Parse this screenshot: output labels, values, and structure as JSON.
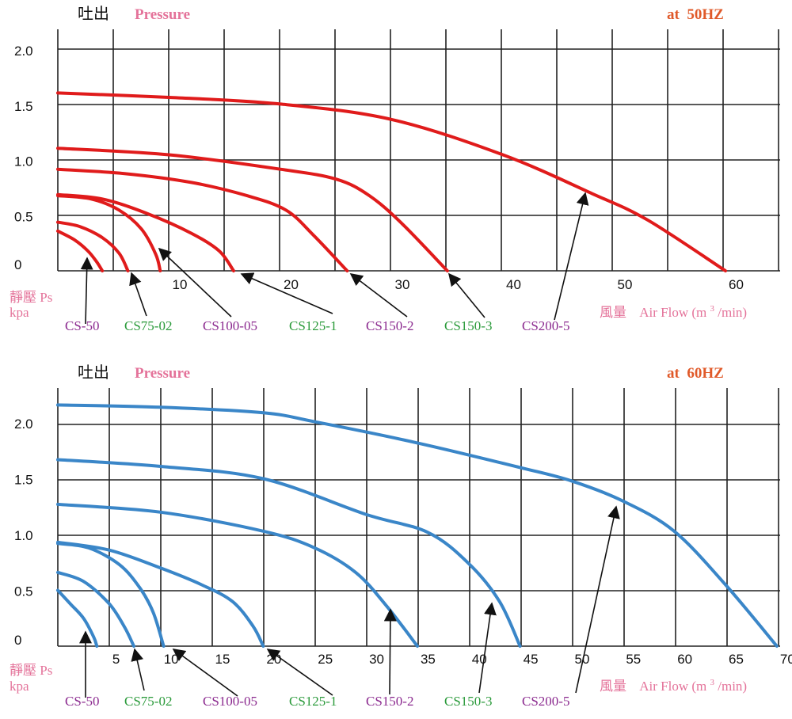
{
  "charts": [
    {
      "heading_zh": "吐出",
      "heading_en": "Pressure",
      "frequency": "at  50HZ",
      "ylabel_zh": "靜壓 Ps",
      "ylabel_unit": "kpa",
      "xlabel_zh": "風量",
      "xlabel_en": "Air Flow (m",
      "xlabel_sup": "3",
      "xlabel_tail": "/min)"
    },
    {
      "heading_zh": "吐出",
      "heading_en": "Pressure",
      "frequency": "at  60HZ",
      "ylabel_zh": "靜壓 Ps",
      "ylabel_unit": "kpa",
      "xlabel_zh": "風量",
      "xlabel_en": "Air Flow (m",
      "xlabel_sup": "3",
      "xlabel_tail": "/min)"
    }
  ],
  "colors": {
    "curve_50hz": "#e01b1b",
    "curve_60hz": "#3a86c8",
    "model_purple": "#8b2a8f",
    "model_green": "#2a9a3a",
    "label_pink": "#e4739a",
    "frequency": "#e05a2a"
  },
  "chart_data": [
    {
      "type": "line",
      "title": "at 50HZ",
      "xlabel": "風量 Air Flow (m3/min)",
      "ylabel": "靜壓 Ps kpa",
      "xlim": [
        0,
        65
      ],
      "ylim": [
        0,
        2.2
      ],
      "x_ticks": [
        "10",
        "20",
        "30",
        "40",
        "50",
        "60"
      ],
      "y_ticks": [
        "0",
        "0.5",
        "1.0",
        "1.5",
        "2.0"
      ],
      "grid": true,
      "series": [
        {
          "name": "CS-50",
          "x": [
            0,
            1.5,
            2.7,
            3.5,
            4.0
          ],
          "y": [
            0.36,
            0.28,
            0.18,
            0.08,
            0.0
          ]
        },
        {
          "name": "CS75-02",
          "x": [
            0,
            2,
            4,
            5.5,
            6.3
          ],
          "y": [
            0.44,
            0.4,
            0.3,
            0.16,
            0.0
          ]
        },
        {
          "name": "CS100-05",
          "x": [
            0,
            3,
            5.5,
            7.5,
            8.8,
            9.2
          ],
          "y": [
            0.68,
            0.65,
            0.55,
            0.38,
            0.15,
            0.0
          ]
        },
        {
          "name": "CS125-1",
          "x": [
            0,
            4,
            8,
            12,
            14.5,
            15.8
          ],
          "y": [
            0.69,
            0.65,
            0.52,
            0.34,
            0.18,
            0.0
          ]
        },
        {
          "name": "CS150-2",
          "x": [
            0,
            6,
            12,
            17,
            20.5,
            23,
            26
          ],
          "y": [
            0.92,
            0.88,
            0.8,
            0.68,
            0.55,
            0.32,
            0.0
          ]
        },
        {
          "name": "CS150-3",
          "x": [
            0,
            10,
            20,
            25,
            28,
            31,
            35
          ],
          "y": [
            1.11,
            1.05,
            0.92,
            0.83,
            0.68,
            0.42,
            0.0
          ]
        },
        {
          "name": "CS200-5",
          "x": [
            0,
            10,
            20,
            30,
            40,
            48,
            53,
            60
          ],
          "y": [
            1.61,
            1.57,
            1.51,
            1.37,
            1.05,
            0.7,
            0.46,
            0.0
          ]
        }
      ]
    },
    {
      "type": "line",
      "title": "at 60HZ",
      "xlabel": "風量 Air Flow (m3/min)",
      "ylabel": "靜壓 Ps kpa",
      "xlim": [
        0,
        70
      ],
      "ylim": [
        0,
        2.35
      ],
      "x_ticks": [
        "5",
        "10",
        "15",
        "20",
        "25",
        "30",
        "35",
        "40",
        "45",
        "50",
        "55",
        "60",
        "65",
        "70"
      ],
      "y_ticks": [
        "0",
        "0.5",
        "1.0",
        "1.5",
        "2.0"
      ],
      "grid": true,
      "series": [
        {
          "name": "CS-50",
          "x": [
            0,
            1.2,
            2.5,
            3.5,
            3.8
          ],
          "y": [
            0.5,
            0.38,
            0.25,
            0.08,
            0.0
          ]
        },
        {
          "name": "CS75-02",
          "x": [
            0,
            2.5,
            5,
            6.5,
            7.4
          ],
          "y": [
            0.66,
            0.58,
            0.38,
            0.17,
            0.0
          ]
        },
        {
          "name": "CS100-05",
          "x": [
            0,
            3,
            6,
            8,
            9.3,
            10.3
          ],
          "y": [
            0.92,
            0.88,
            0.73,
            0.52,
            0.3,
            0.0
          ]
        },
        {
          "name": "CS125-1",
          "x": [
            0,
            5,
            10,
            14,
            17,
            19,
            20
          ],
          "y": [
            0.93,
            0.86,
            0.7,
            0.55,
            0.4,
            0.18,
            0.0
          ]
        },
        {
          "name": "CS150-2",
          "x": [
            0,
            10,
            20,
            25,
            29,
            32,
            35
          ],
          "y": [
            1.27,
            1.2,
            1.03,
            0.88,
            0.66,
            0.36,
            0.0
          ]
        },
        {
          "name": "CS150-3",
          "x": [
            0,
            10,
            20,
            30,
            36,
            40,
            43,
            45
          ],
          "y": [
            1.67,
            1.61,
            1.5,
            1.18,
            1.02,
            0.74,
            0.4,
            0.0
          ]
        },
        {
          "name": "CS200-5",
          "x": [
            0,
            10,
            20,
            25,
            35,
            45,
            50,
            55,
            60,
            65,
            70
          ],
          "y": [
            2.16,
            2.14,
            2.09,
            2.01,
            1.82,
            1.6,
            1.48,
            1.3,
            1.03,
            0.55,
            0.0
          ]
        }
      ]
    }
  ],
  "model_labels": [
    {
      "label": "CS-50",
      "color": "purple"
    },
    {
      "label": "CS75-02",
      "color": "green"
    },
    {
      "label": "CS100-05",
      "color": "purple"
    },
    {
      "label": "CS125-1",
      "color": "green"
    },
    {
      "label": "CS150-2",
      "color": "purple"
    },
    {
      "label": "CS150-3",
      "color": "green"
    },
    {
      "label": "CS200-5",
      "color": "purple"
    }
  ]
}
